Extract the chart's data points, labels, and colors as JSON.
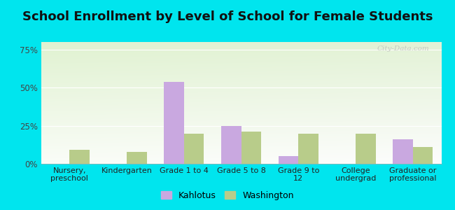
{
  "title": "School Enrollment by Level of School for Female Students",
  "categories": [
    "Nursery,\npreschool",
    "Kindergarten",
    "Grade 1 to 4",
    "Grade 5 to 8",
    "Grade 9 to\n12",
    "College\nundergrad",
    "Graduate or\nprofessional"
  ],
  "kahlotus": [
    0,
    0,
    54.0,
    25.0,
    5.0,
    0,
    16.0
  ],
  "washington": [
    9.0,
    8.0,
    20.0,
    21.0,
    20.0,
    20.0,
    11.0
  ],
  "kahlotus_color": "#c9a8e0",
  "washington_color": "#b8cc8a",
  "background_outer": "#00e5ee",
  "ylim": [
    0,
    80
  ],
  "yticks": [
    0,
    25,
    50,
    75
  ],
  "ytick_labels": [
    "0%",
    "25%",
    "50%",
    "75%"
  ],
  "title_fontsize": 13,
  "legend_label_kahlotus": "Kahlotus",
  "legend_label_washington": "Washington",
  "bar_width": 0.35
}
